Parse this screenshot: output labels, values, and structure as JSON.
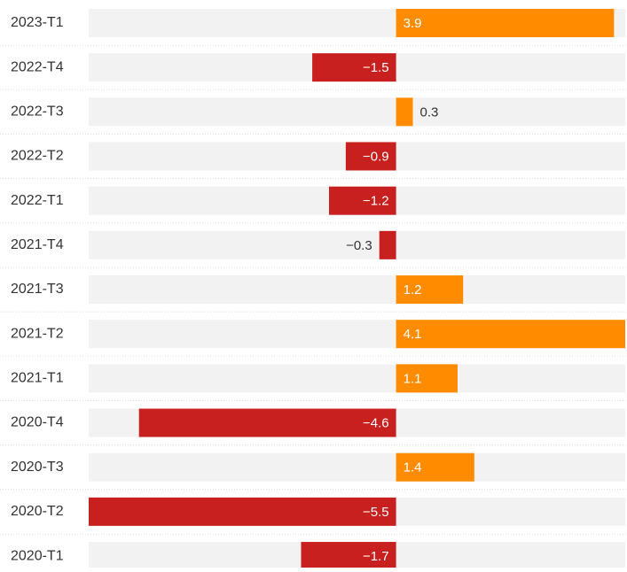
{
  "chart_data": {
    "type": "bar",
    "orientation": "horizontal",
    "categories": [
      "2023-T1",
      "2022-T4",
      "2022-T3",
      "2022-T2",
      "2022-T1",
      "2021-T4",
      "2021-T3",
      "2021-T2",
      "2021-T1",
      "2020-T4",
      "2020-T3",
      "2020-T2",
      "2020-T1"
    ],
    "values": [
      3.9,
      -1.5,
      0.3,
      -0.9,
      -1.2,
      -0.3,
      1.2,
      4.1,
      1.1,
      -4.6,
      1.4,
      -5.5,
      -1.7
    ],
    "value_labels": [
      "3.9",
      "−1.5",
      "0.3",
      "−0.9",
      "−1.2",
      "−0.3",
      "1.2",
      "4.1",
      "1.1",
      "−4.6",
      "1.4",
      "−5.5",
      "−1.7"
    ],
    "positive_color": "#ff8c00",
    "negative_color": "#c8201f",
    "background_color": "#f2f2f2"
  }
}
